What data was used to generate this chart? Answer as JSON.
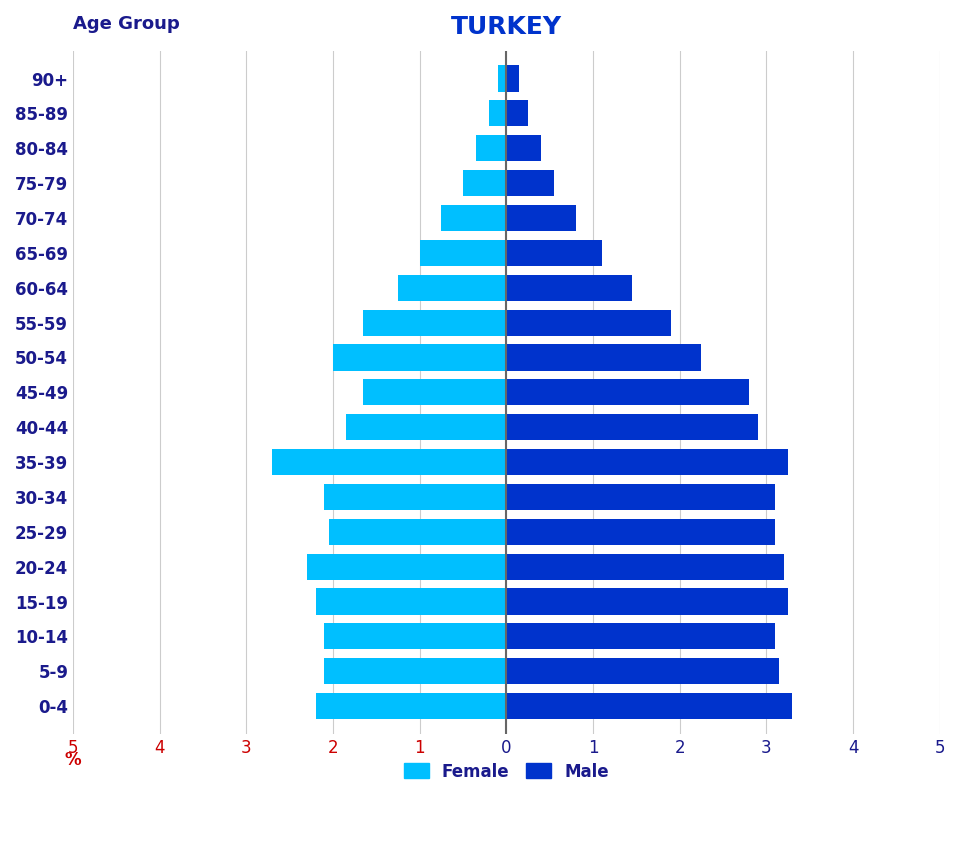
{
  "title": "TURKEY",
  "age_label": "Age Group",
  "xlabel": "%",
  "age_groups": [
    "0-4",
    "5-9",
    "10-14",
    "15-19",
    "20-24",
    "25-29",
    "30-34",
    "35-39",
    "40-44",
    "45-49",
    "50-54",
    "55-59",
    "60-64",
    "65-69",
    "70-74",
    "75-79",
    "80-84",
    "85-89",
    "90+"
  ],
  "female": [
    2.2,
    2.1,
    2.1,
    2.2,
    2.3,
    2.05,
    2.1,
    2.7,
    1.85,
    1.65,
    2.0,
    1.65,
    1.25,
    1.0,
    0.75,
    0.5,
    0.35,
    0.2,
    0.1
  ],
  "male": [
    3.3,
    3.15,
    3.1,
    3.25,
    3.2,
    3.1,
    3.1,
    3.25,
    2.9,
    2.8,
    2.25,
    1.9,
    1.45,
    1.1,
    0.8,
    0.55,
    0.4,
    0.25,
    0.15
  ],
  "female_color": "#00BFFF",
  "male_color": "#0033CC",
  "title_color": "#0033CC",
  "label_color": "#1a1a8c",
  "xlabel_color": "#cc0000",
  "xtick_left_color": "#cc0000",
  "xtick_right_color": "#1a1a8c",
  "axis_line_color": "#666666",
  "grid_color": "#cccccc",
  "xlim": 5,
  "bar_height": 0.75,
  "title_fontsize": 18,
  "label_fontsize": 12,
  "tick_fontsize": 12,
  "legend_fontsize": 12
}
